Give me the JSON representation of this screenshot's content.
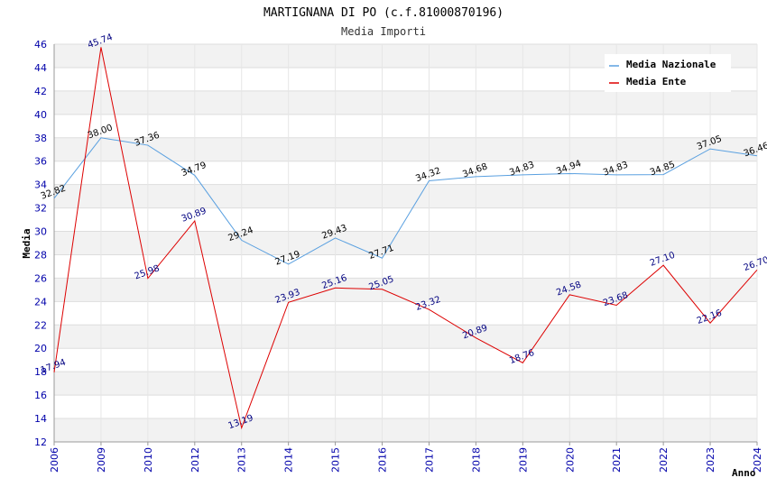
{
  "chart_data": {
    "type": "line",
    "title": "MARTIGNANA DI PO (c.f.81000870196)",
    "subtitle": "Media Importi",
    "xlabel": "Anno",
    "ylabel": "Media",
    "categories": [
      "2006",
      "2009",
      "2010",
      "2012",
      "2013",
      "2014",
      "2015",
      "2016",
      "2017",
      "2018",
      "2019",
      "2020",
      "2021",
      "2022",
      "2023",
      "2024"
    ],
    "ylim": [
      12,
      46
    ],
    "yticks": [
      12,
      14,
      16,
      18,
      20,
      22,
      24,
      26,
      28,
      30,
      32,
      34,
      36,
      38,
      40,
      42,
      44,
      46
    ],
    "legend_position": "top-right",
    "series": [
      {
        "name": "Media Nazionale",
        "color": "#5aa0e0",
        "label_color": "#000000",
        "values": [
          32.82,
          38.0,
          37.36,
          34.79,
          29.24,
          27.19,
          29.43,
          27.71,
          34.32,
          34.68,
          34.83,
          34.94,
          34.83,
          34.85,
          37.05,
          36.46
        ]
      },
      {
        "name": "Media Ente",
        "color": "#dd0000",
        "label_color": "#000080",
        "values": [
          17.94,
          45.74,
          25.98,
          30.89,
          13.19,
          23.93,
          25.16,
          25.05,
          23.32,
          20.89,
          18.76,
          24.58,
          23.68,
          27.1,
          22.16,
          26.7
        ]
      }
    ]
  }
}
